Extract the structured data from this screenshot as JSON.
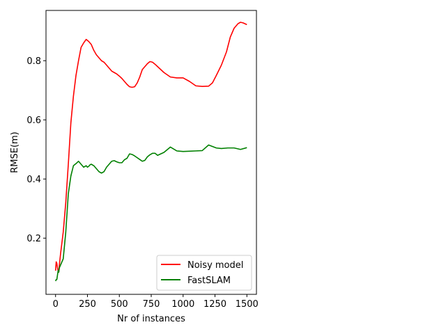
{
  "chart_data": {
    "type": "line",
    "title": "",
    "xlabel": "Nr of instances",
    "ylabel": "RMSE(m)",
    "xlim": [
      -75,
      1575
    ],
    "ylim": [
      0.01,
      0.97
    ],
    "xticks": [
      0,
      250,
      500,
      750,
      1000,
      1250,
      1500
    ],
    "yticks": [
      0.2,
      0.4,
      0.6,
      0.8
    ],
    "xtick_labels": [
      "0",
      "250",
      "500",
      "750",
      "1000",
      "1250",
      "1500"
    ],
    "ytick_labels": [
      "0.2",
      "0.4",
      "0.6",
      "0.8"
    ],
    "grid": false,
    "legend_position": "lower-right",
    "series": [
      {
        "name": "Noisy model",
        "color": "#ff0000",
        "x": [
          0,
          5,
          10,
          15,
          20,
          25,
          30,
          40,
          60,
          80,
          100,
          120,
          140,
          160,
          180,
          200,
          220,
          240,
          260,
          270,
          280,
          300,
          320,
          340,
          360,
          380,
          400,
          420,
          440,
          460,
          480,
          500,
          520,
          540,
          560,
          580,
          600,
          620,
          640,
          660,
          680,
          700,
          720,
          740,
          760,
          780,
          800,
          850,
          900,
          950,
          1000,
          1050,
          1100,
          1150,
          1200,
          1230,
          1260,
          1300,
          1340,
          1370,
          1400,
          1430,
          1450,
          1470,
          1500
        ],
        "y": [
          0.09,
          0.12,
          0.115,
          0.1,
          0.09,
          0.085,
          0.11,
          0.15,
          0.22,
          0.32,
          0.45,
          0.59,
          0.68,
          0.75,
          0.8,
          0.845,
          0.86,
          0.872,
          0.865,
          0.86,
          0.855,
          0.835,
          0.82,
          0.81,
          0.8,
          0.795,
          0.785,
          0.775,
          0.765,
          0.76,
          0.755,
          0.748,
          0.74,
          0.73,
          0.72,
          0.712,
          0.71,
          0.712,
          0.725,
          0.745,
          0.77,
          0.78,
          0.79,
          0.797,
          0.795,
          0.788,
          0.78,
          0.76,
          0.745,
          0.742,
          0.742,
          0.73,
          0.715,
          0.713,
          0.714,
          0.725,
          0.75,
          0.785,
          0.83,
          0.88,
          0.91,
          0.925,
          0.93,
          0.928,
          0.922
        ]
      },
      {
        "name": "FastSLAM",
        "color": "#008000",
        "x": [
          0,
          5,
          10,
          15,
          20,
          25,
          30,
          40,
          60,
          80,
          100,
          120,
          140,
          160,
          180,
          190,
          200,
          220,
          240,
          250,
          260,
          270,
          280,
          300,
          320,
          340,
          360,
          380,
          400,
          420,
          440,
          460,
          480,
          500,
          520,
          540,
          560,
          580,
          600,
          620,
          640,
          660,
          680,
          700,
          720,
          740,
          760,
          780,
          800,
          850,
          900,
          950,
          1000,
          1050,
          1100,
          1150,
          1200,
          1230,
          1260,
          1300,
          1350,
          1400,
          1450,
          1500
        ],
        "y": [
          0.055,
          0.06,
          0.06,
          0.075,
          0.09,
          0.085,
          0.1,
          0.11,
          0.13,
          0.22,
          0.35,
          0.41,
          0.445,
          0.452,
          0.46,
          0.455,
          0.45,
          0.44,
          0.445,
          0.44,
          0.443,
          0.448,
          0.45,
          0.445,
          0.435,
          0.425,
          0.42,
          0.425,
          0.44,
          0.45,
          0.46,
          0.462,
          0.458,
          0.455,
          0.455,
          0.465,
          0.47,
          0.485,
          0.483,
          0.478,
          0.472,
          0.466,
          0.46,
          0.463,
          0.475,
          0.482,
          0.487,
          0.487,
          0.48,
          0.49,
          0.508,
          0.495,
          0.493,
          0.494,
          0.495,
          0.496,
          0.515,
          0.51,
          0.505,
          0.503,
          0.505,
          0.505,
          0.5,
          0.506
        ]
      }
    ]
  }
}
